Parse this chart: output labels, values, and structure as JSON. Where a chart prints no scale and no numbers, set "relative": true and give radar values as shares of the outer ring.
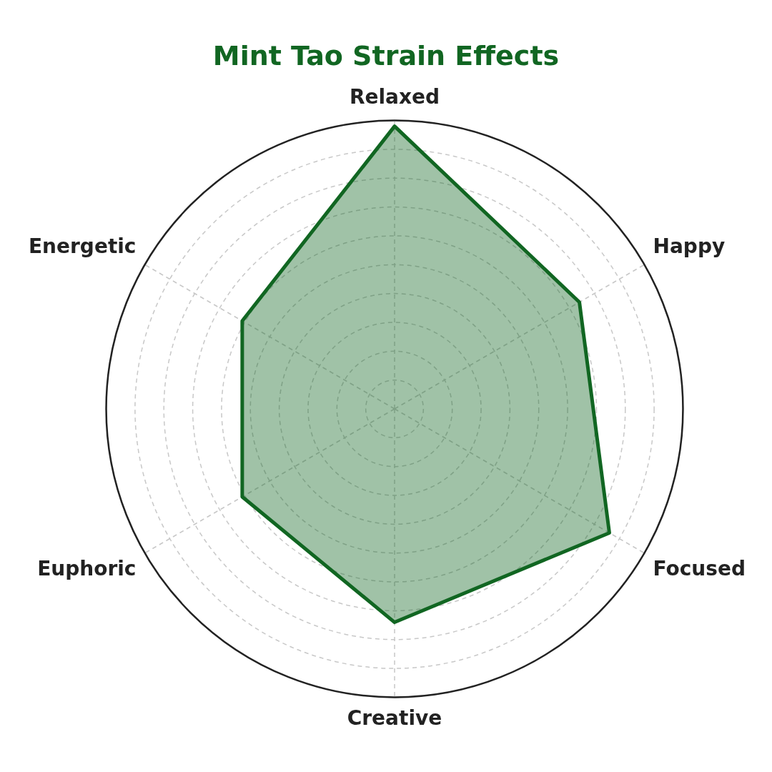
{
  "chart_data": {
    "type": "radar",
    "title": "Mint Tao Strain Effects",
    "relative": true,
    "categories": [
      "Relaxed",
      "Happy",
      "Focused",
      "Creative",
      "Euphoric",
      "Energetic"
    ],
    "series": [
      {
        "color": "#116622",
        "values": [
          0.98,
          0.74,
          0.86,
          0.74,
          0.61,
          0.61
        ]
      }
    ],
    "grid": true,
    "legend": false
  }
}
